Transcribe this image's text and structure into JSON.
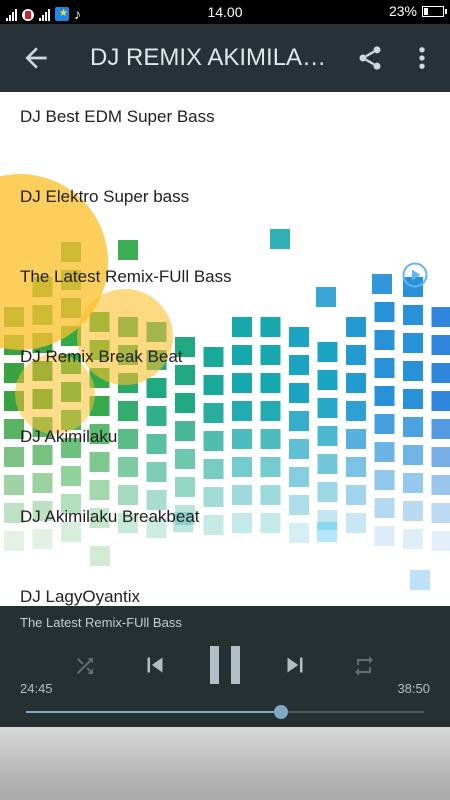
{
  "status_bar": {
    "time": "14.00",
    "battery_percent": "23%",
    "battery_level": 0.23
  },
  "app_bar": {
    "title": "DJ REMIX AKIMILAKU TERBARU",
    "back_icon": "arrow-back-icon",
    "share_icon": "share-icon",
    "more_icon": "more-vert-icon"
  },
  "songs": [
    {
      "title": "DJ Best EDM Super Bass"
    },
    {
      "title": "DJ Elektro Super bass"
    },
    {
      "title": "The Latest Remix-FUll Bass",
      "playing": true
    },
    {
      "title": "DJ Remix Break Beat"
    },
    {
      "title": "DJ Akimilaku"
    },
    {
      "title": "DJ Akimilaku Breakbeat"
    },
    {
      "title": "DJ LagyOyantix"
    }
  ],
  "player": {
    "now_playing": "The Latest Remix-FUll Bass",
    "current_time": "24:45",
    "total_time": "38:50",
    "progress": 0.64,
    "controls": [
      "shuffle-icon",
      "skip-previous-icon",
      "pause-icon",
      "skip-next-icon",
      "repeat-icon"
    ]
  },
  "colors": {
    "app_bar": "#263238",
    "player": "#253032",
    "accent": "#7fa8c4"
  }
}
